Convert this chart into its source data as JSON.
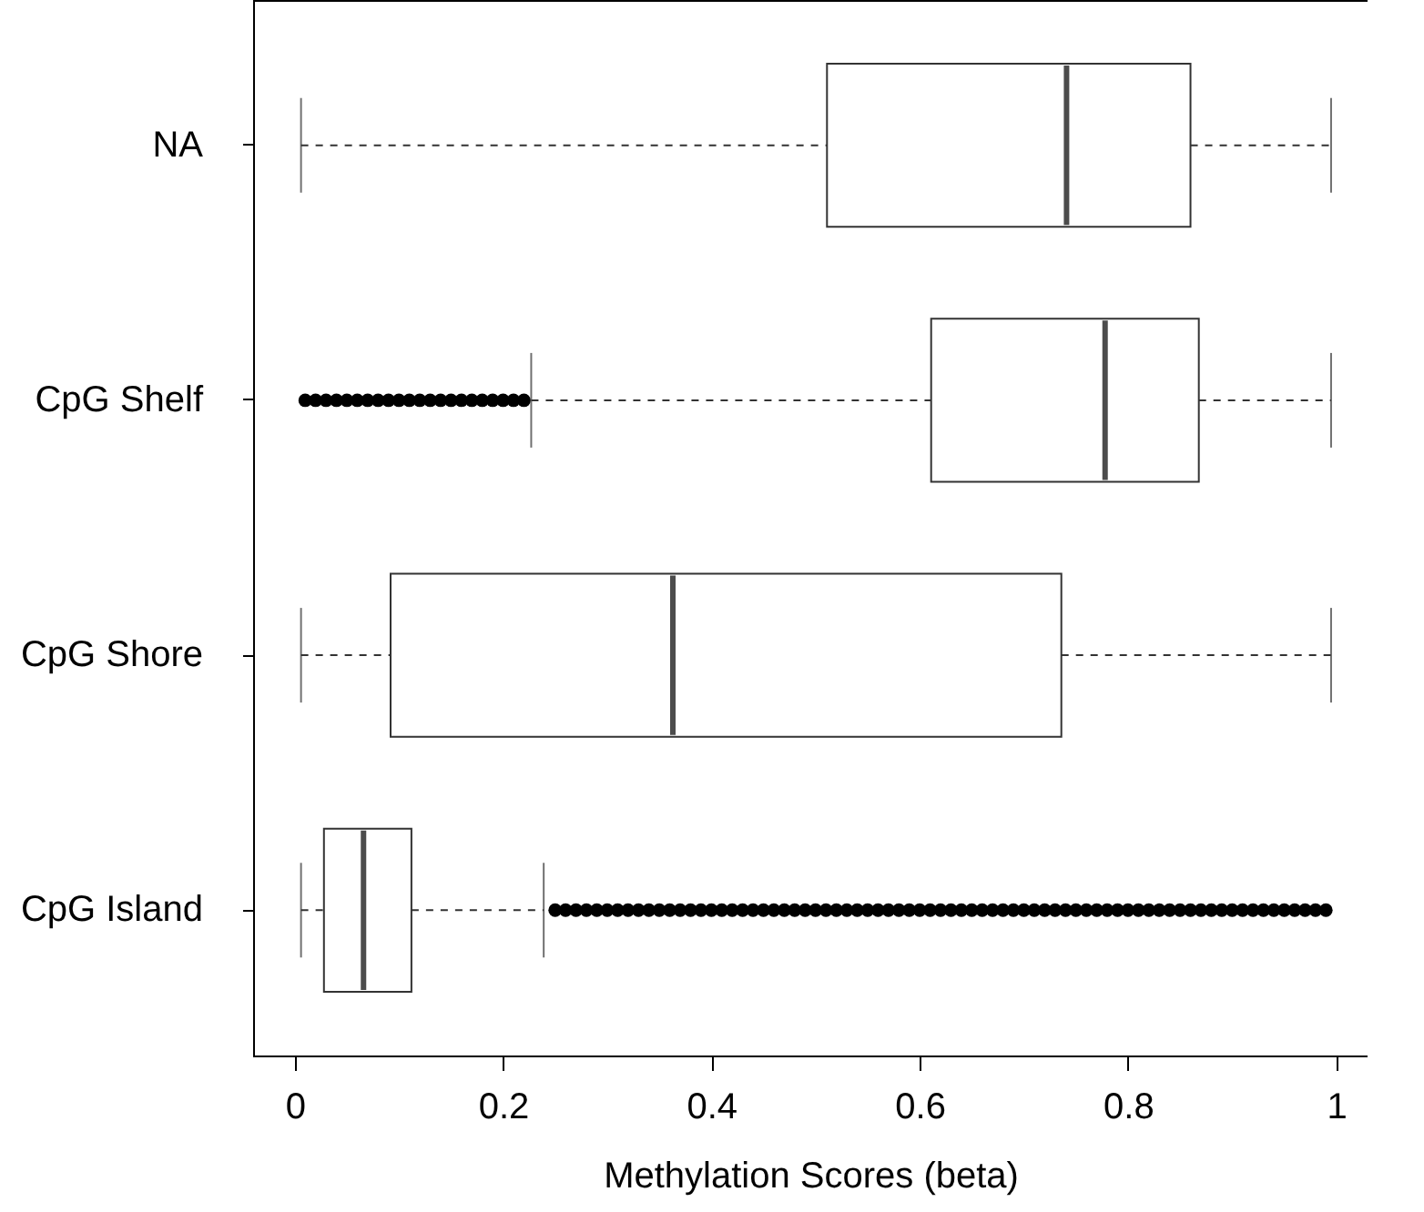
{
  "chart_data": {
    "type": "box",
    "orientation": "horizontal",
    "xlabel": "Methylation Scores (beta)",
    "categories": [
      "NA",
      "CpG Shelf",
      "CpG Shore",
      "CpG Island"
    ],
    "xlim": [
      -0.04,
      1.03
    ],
    "xticks": [
      0,
      {
        "value": 0.2,
        "label": "0.2"
      },
      {
        "value": 0.4,
        "label": "0.4"
      },
      {
        "value": 0.6,
        "label": "0.6"
      },
      {
        "value": 0.8,
        "label": "0.8"
      },
      1
    ],
    "boxes": [
      {
        "low": 0.006,
        "q1": 0.511,
        "median": 0.741,
        "q3": 0.86,
        "high": 0.995
      },
      {
        "low": 0.227,
        "q1": 0.611,
        "median": 0.778,
        "q3": 0.868,
        "high": 0.995,
        "outliers": [
          0.01,
          0.02,
          0.03,
          0.04,
          0.05,
          0.06,
          0.07,
          0.08,
          0.09,
          0.1,
          0.11,
          0.12,
          0.13,
          0.14,
          0.15,
          0.16,
          0.17,
          0.18,
          0.19,
          0.2,
          0.21,
          0.22
        ]
      },
      {
        "low": 0.006,
        "q1": 0.092,
        "median": 0.363,
        "q3": 0.736,
        "high": 0.995
      },
      {
        "low": 0.006,
        "q1": 0.028,
        "median": 0.066,
        "q3": 0.112,
        "high": 0.239,
        "outliers": [
          0.25,
          0.26,
          0.27,
          0.28,
          0.29,
          0.3,
          0.31,
          0.32,
          0.33,
          0.34,
          0.35,
          0.36,
          0.37,
          0.38,
          0.39,
          0.4,
          0.41,
          0.42,
          0.43,
          0.44,
          0.45,
          0.46,
          0.47,
          0.48,
          0.49,
          0.5,
          0.51,
          0.52,
          0.53,
          0.54,
          0.55,
          0.56,
          0.57,
          0.58,
          0.59,
          0.6,
          0.61,
          0.62,
          0.63,
          0.64,
          0.65,
          0.66,
          0.67,
          0.68,
          0.69,
          0.7,
          0.71,
          0.72,
          0.73,
          0.74,
          0.75,
          0.76,
          0.77,
          0.78,
          0.79,
          0.8,
          0.81,
          0.82,
          0.83,
          0.84,
          0.85,
          0.86,
          0.87,
          0.88,
          0.89,
          0.9,
          0.91,
          0.92,
          0.93,
          0.94,
          0.95,
          0.96,
          0.97,
          0.98,
          0.99
        ]
      }
    ]
  }
}
